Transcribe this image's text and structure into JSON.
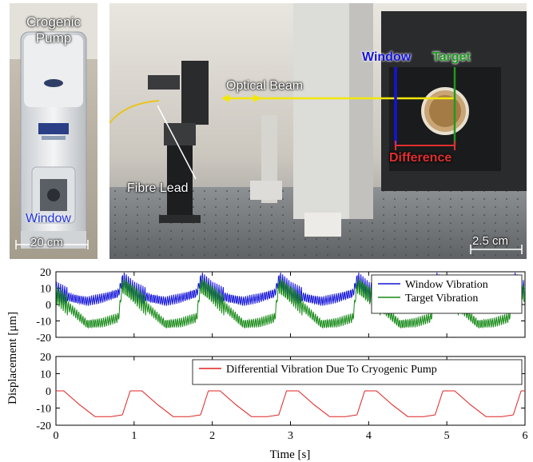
{
  "photos": {
    "left": {
      "label_pump": "Crogenic\nPump",
      "label_window": "Window",
      "scale_label": "20 cm"
    },
    "right": {
      "label_window": "Window",
      "label_target": "Target",
      "label_beam": "Optical Beam",
      "label_difference": "Difference",
      "label_fibre": "Fibre Lead",
      "scale_label": "2.5 cm"
    }
  },
  "colors": {
    "window": "#1414d8",
    "target": "#178a17",
    "differential": "#e02020",
    "beam": "#f2e60a",
    "difference_text": "#e03030"
  },
  "chart_data": [
    {
      "type": "line",
      "panel": "top",
      "ylim": [
        -20,
        20
      ],
      "yticks": [
        -20,
        -10,
        0,
        10,
        20
      ],
      "xlim": [
        0,
        6
      ],
      "ylabel": "Displacement [μm]",
      "series": [
        {
          "name": "Window Vibration",
          "color": "#1414d8",
          "x": [
            0,
            0.2,
            0.4,
            0.6,
            0.8,
            0.85,
            1.0,
            1.2,
            1.4,
            1.6,
            1.8,
            1.85,
            2.0,
            2.2,
            2.4,
            2.6,
            2.8,
            2.85,
            3.0,
            3.2,
            3.4,
            3.6,
            3.8,
            3.85,
            4.0,
            4.2,
            4.4,
            4.6,
            4.8,
            4.85,
            5.0,
            5.2,
            5.4,
            5.6,
            5.8,
            5.85,
            6.0
          ],
          "y": [
            8,
            4,
            2,
            4,
            7,
            15,
            8,
            4,
            2,
            4,
            7,
            15,
            8,
            4,
            2,
            4,
            7,
            15,
            8,
            4,
            2,
            4,
            7,
            15,
            8,
            4,
            2,
            4,
            7,
            15,
            8,
            4,
            2,
            4,
            7,
            15,
            8
          ]
        },
        {
          "name": "Target Vibration",
          "color": "#178a17",
          "x": [
            0,
            0.2,
            0.4,
            0.6,
            0.8,
            0.85,
            1.0,
            1.2,
            1.4,
            1.6,
            1.8,
            1.85,
            2.0,
            2.2,
            2.4,
            2.6,
            2.8,
            2.85,
            3.0,
            3.2,
            3.4,
            3.6,
            3.8,
            3.85,
            4.0,
            4.2,
            4.4,
            4.6,
            4.8,
            4.85,
            5.0,
            5.2,
            5.4,
            5.6,
            5.8,
            5.85,
            6.0
          ],
          "y": [
            6,
            -3,
            -12,
            -11,
            -8,
            12,
            6,
            -3,
            -12,
            -11,
            -8,
            12,
            6,
            -3,
            -12,
            -11,
            -8,
            12,
            6,
            -3,
            -12,
            -11,
            -8,
            12,
            6,
            -3,
            -12,
            -11,
            -8,
            12,
            6,
            -3,
            -12,
            -11,
            -8,
            12,
            6
          ]
        }
      ]
    },
    {
      "type": "line",
      "panel": "bottom",
      "ylim": [
        -20,
        20
      ],
      "yticks": [
        -20,
        -10,
        0,
        10,
        20
      ],
      "xlim": [
        0,
        6
      ],
      "xticks": [
        0,
        1,
        2,
        3,
        4,
        5,
        6
      ],
      "xlabel": "Time [s]",
      "series": [
        {
          "name": "Differential Vibration Due To Cryogenic Pump",
          "color": "#e02020",
          "x": [
            0,
            0.1,
            0.3,
            0.5,
            0.7,
            0.85,
            0.95,
            1.1,
            1.3,
            1.5,
            1.7,
            1.85,
            1.95,
            2.1,
            2.3,
            2.5,
            2.7,
            2.85,
            2.95,
            3.1,
            3.3,
            3.5,
            3.7,
            3.85,
            3.95,
            4.1,
            4.3,
            4.5,
            4.7,
            4.85,
            4.95,
            5.1,
            5.3,
            5.5,
            5.7,
            5.85,
            5.95,
            6.0
          ],
          "y": [
            0,
            0,
            -8,
            -15,
            -15,
            -14,
            0,
            0,
            -8,
            -15,
            -15,
            -14,
            0,
            0,
            -8,
            -15,
            -15,
            -14,
            0,
            0,
            -8,
            -15,
            -15,
            -14,
            0,
            0,
            -8,
            -15,
            -15,
            -14,
            0,
            0,
            -8,
            -15,
            -15,
            -14,
            0,
            0
          ]
        }
      ]
    }
  ]
}
